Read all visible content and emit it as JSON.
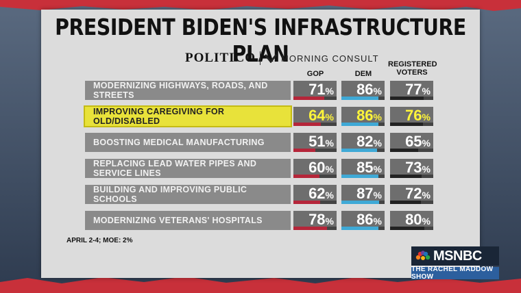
{
  "title": "PRESIDENT BIDEN'S INFRASTRUCTURE PLAN",
  "source": {
    "left": "POLITICO",
    "right": "MORNING CONSULT"
  },
  "note": "APRIL 2-4; MOE: 2%",
  "network": {
    "logo": "MSNBC",
    "show": "THE RACHEL MADDOW SHOW"
  },
  "colors": {
    "gop": "#b5263a",
    "dem": "#3fa9d6",
    "voters": "#222222",
    "highlight": "#e8e23a"
  },
  "chart_data": {
    "type": "table",
    "columns": [
      "GOP",
      "DEM",
      "REGISTERED VOTERS"
    ],
    "rows": [
      {
        "label": "MODERNIZING HIGHWAYS, ROADS, AND STREETS",
        "values": [
          71,
          86,
          77
        ],
        "highlight": false
      },
      {
        "label": "IMPROVING CAREGIVING FOR OLD/DISABLED",
        "values": [
          64,
          86,
          76
        ],
        "highlight": true
      },
      {
        "label": "BOOSTING MEDICAL MANUFACTURING",
        "values": [
          51,
          82,
          65
        ],
        "highlight": false
      },
      {
        "label": "REPLACING LEAD WATER PIPES AND SERVICE LINES",
        "values": [
          60,
          85,
          73
        ],
        "highlight": false
      },
      {
        "label": "BUILDING AND IMPROVING PUBLIC SCHOOLS",
        "values": [
          62,
          87,
          72
        ],
        "highlight": false
      },
      {
        "label": "MODERNIZING VETERANS' HOSPITALS",
        "values": [
          78,
          86,
          80
        ],
        "highlight": false
      }
    ],
    "unit": "%"
  }
}
